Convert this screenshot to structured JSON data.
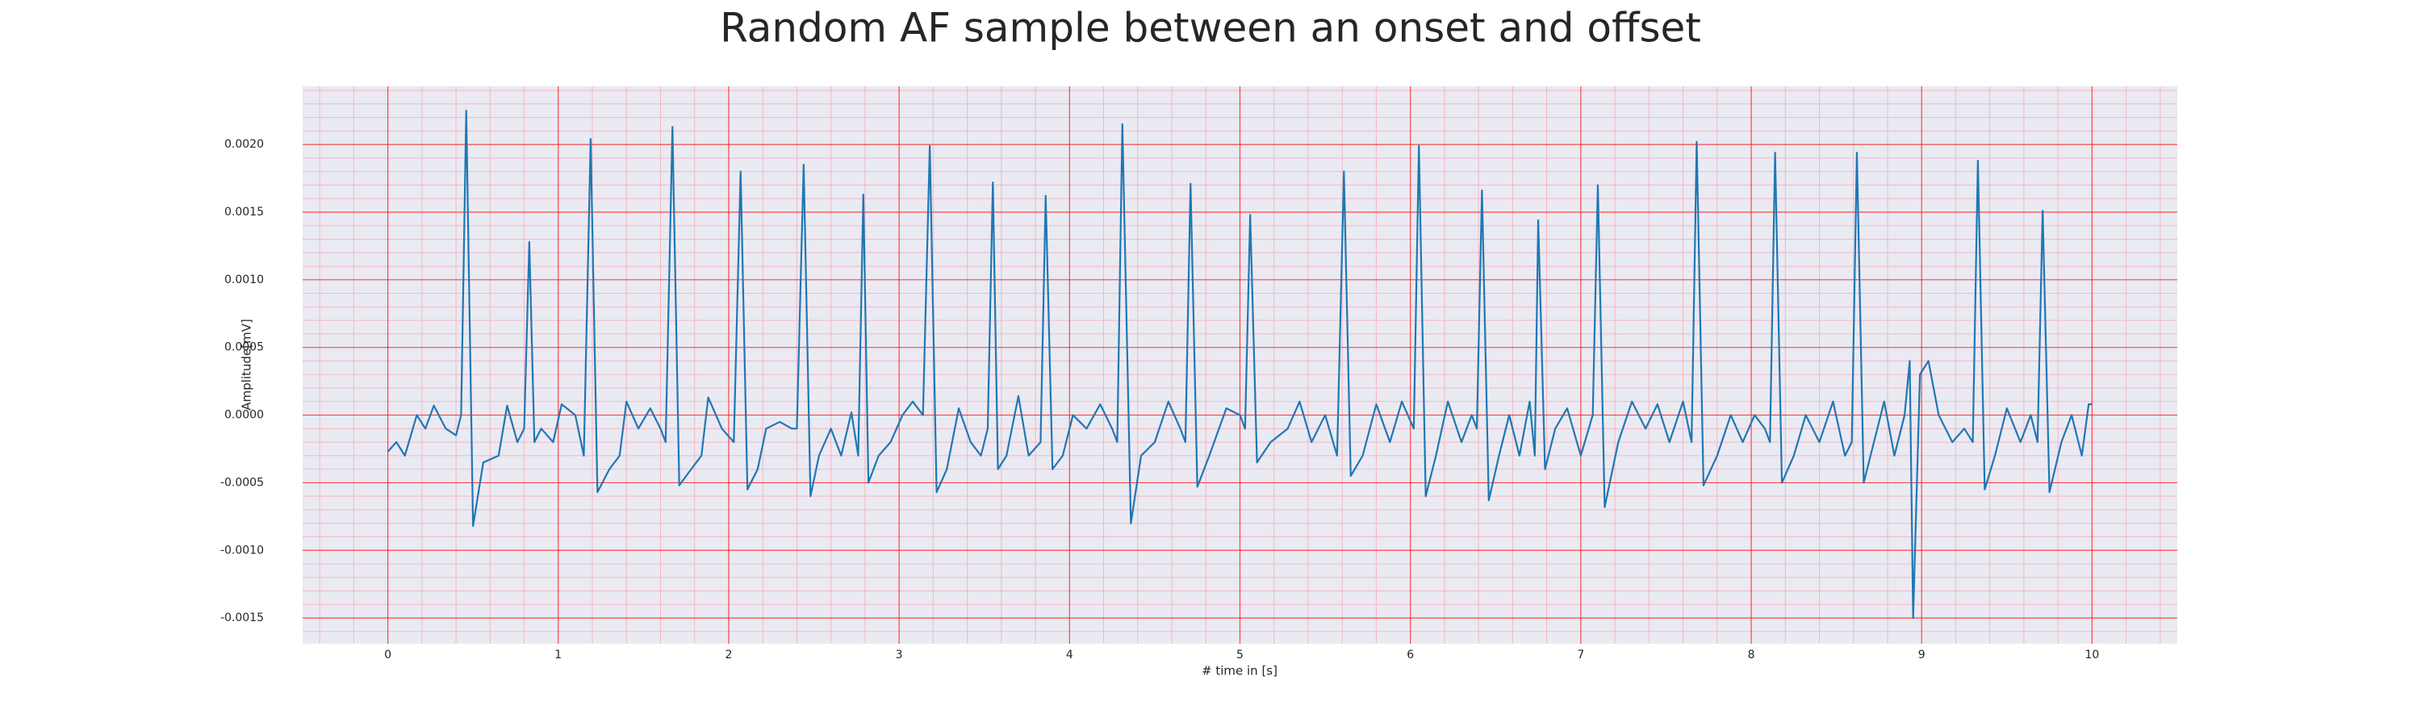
{
  "chart_data": {
    "type": "line",
    "title": "Random AF sample between an onset and offset",
    "xlabel": "# time in [s]",
    "ylabel": "Amplitude[mV]",
    "xlim": [
      -0.5,
      10.5
    ],
    "ylim": [
      -0.00169,
      0.00243
    ],
    "xticks": [
      0,
      1,
      2,
      3,
      4,
      5,
      6,
      7,
      8,
      9,
      10
    ],
    "yticks": [
      {
        "value": -0.0015,
        "label": "-0.0015"
      },
      {
        "value": -0.001,
        "label": "-0.0010"
      },
      {
        "value": -0.0005,
        "label": "-0.0005"
      },
      {
        "value": 0,
        "label": "0.0000"
      },
      {
        "value": 0.0005,
        "label": "0.0005"
      },
      {
        "value": 0.001,
        "label": "0.0010"
      },
      {
        "value": 0.0015,
        "label": "0.0015"
      },
      {
        "value": 0.002,
        "label": "0.0020"
      }
    ],
    "grid": true,
    "minor_grid": true,
    "grid_color": "#ff0000",
    "minor_grid_color": "#f4b6c2",
    "background": "#eaeaf2",
    "x": [
      0.0,
      0.05,
      0.1,
      0.17,
      0.22,
      0.27,
      0.34,
      0.4,
      0.43,
      0.46,
      0.5,
      0.56,
      0.65,
      0.7,
      0.76,
      0.8,
      0.83,
      0.86,
      0.9,
      0.97,
      1.02,
      1.1,
      1.15,
      1.19,
      1.23,
      1.3,
      1.36,
      1.4,
      1.47,
      1.54,
      1.6,
      1.63,
      1.67,
      1.71,
      1.78,
      1.84,
      1.88,
      1.96,
      2.03,
      2.07,
      2.11,
      2.17,
      2.22,
      2.3,
      2.37,
      2.4,
      2.44,
      2.48,
      2.53,
      2.6,
      2.66,
      2.72,
      2.76,
      2.79,
      2.82,
      2.88,
      2.95,
      3.02,
      3.08,
      3.14,
      3.18,
      3.22,
      3.28,
      3.35,
      3.42,
      3.48,
      3.52,
      3.55,
      3.58,
      3.63,
      3.7,
      3.76,
      3.83,
      3.86,
      3.9,
      3.96,
      4.02,
      4.1,
      4.18,
      4.25,
      4.28,
      4.31,
      4.36,
      4.42,
      4.5,
      4.58,
      4.65,
      4.68,
      4.71,
      4.75,
      4.82,
      4.92,
      5.0,
      5.03,
      5.06,
      5.1,
      5.18,
      5.28,
      5.35,
      5.42,
      5.5,
      5.57,
      5.61,
      5.65,
      5.72,
      5.8,
      5.88,
      5.95,
      6.02,
      6.05,
      6.09,
      6.15,
      6.22,
      6.3,
      6.36,
      6.39,
      6.42,
      6.46,
      6.52,
      6.58,
      6.64,
      6.7,
      6.73,
      6.75,
      6.79,
      6.85,
      6.92,
      7.0,
      7.07,
      7.1,
      7.14,
      7.22,
      7.3,
      7.38,
      7.45,
      7.52,
      7.6,
      7.65,
      7.68,
      7.72,
      7.8,
      7.88,
      7.95,
      8.02,
      8.08,
      8.11,
      8.14,
      8.18,
      8.25,
      8.32,
      8.4,
      8.48,
      8.55,
      8.59,
      8.62,
      8.66,
      8.72,
      8.78,
      8.84,
      8.9,
      8.93,
      8.95,
      8.99,
      9.04,
      9.1,
      9.18,
      9.25,
      9.3,
      9.33,
      9.37,
      9.43,
      9.5,
      9.58,
      9.64,
      9.68,
      9.71,
      9.75,
      9.82,
      9.88,
      9.94,
      9.98,
      10.0
    ],
    "series": [
      {
        "color": "#1f77b4",
        "values": [
          -0.00027,
          -0.0002,
          -0.0003,
          0.0,
          -0.0001,
          7e-05,
          -0.0001,
          -0.00015,
          0.0,
          0.00225,
          -0.00082,
          -0.00035,
          -0.0003,
          7e-05,
          -0.0002,
          -0.0001,
          0.00128,
          -0.0002,
          -0.0001,
          -0.0002,
          8e-05,
          0.0,
          -0.0003,
          0.00204,
          -0.00057,
          -0.0004,
          -0.0003,
          0.0001,
          -0.0001,
          5e-05,
          -0.0001,
          -0.0002,
          0.00213,
          -0.00052,
          -0.0004,
          -0.0003,
          0.00013,
          -0.0001,
          -0.0002,
          0.0018,
          -0.00055,
          -0.0004,
          -0.0001,
          -5e-05,
          -0.0001,
          -0.0001,
          0.00185,
          -0.0006,
          -0.0003,
          -0.0001,
          -0.0003,
          2e-05,
          -0.0003,
          0.00163,
          -0.0005,
          -0.0003,
          -0.0002,
          0.0,
          0.0001,
          0.0,
          0.00199,
          -0.00057,
          -0.0004,
          5e-05,
          -0.0002,
          -0.0003,
          -0.0001,
          0.00172,
          -0.0004,
          -0.0003,
          0.00014,
          -0.0003,
          -0.0002,
          0.00162,
          -0.0004,
          -0.0003,
          0.0,
          -0.0001,
          8e-05,
          -0.0001,
          -0.0002,
          0.00215,
          -0.0008,
          -0.0003,
          -0.0002,
          0.0001,
          -0.0001,
          -0.0002,
          0.00171,
          -0.00053,
          -0.0003,
          5e-05,
          0.0,
          -0.0001,
          0.00148,
          -0.00035,
          -0.0002,
          -0.0001,
          0.0001,
          -0.0002,
          0.0,
          -0.0003,
          0.0018,
          -0.00045,
          -0.0003,
          8e-05,
          -0.0002,
          0.0001,
          -0.0001,
          0.00199,
          -0.0006,
          -0.0003,
          0.0001,
          -0.0002,
          0.0,
          -0.0001,
          0.00166,
          -0.00063,
          -0.0003,
          0.0,
          -0.0003,
          0.0001,
          -0.0003,
          0.00144,
          -0.0004,
          -0.0001,
          5e-05,
          -0.0003,
          0.0,
          0.0017,
          -0.00068,
          -0.0002,
          0.0001,
          -0.0001,
          8e-05,
          -0.0002,
          0.0001,
          -0.0002,
          0.00202,
          -0.00052,
          -0.0003,
          0.0,
          -0.0002,
          0.0,
          -0.0001,
          -0.0002,
          0.00194,
          -0.0005,
          -0.0003,
          0.0,
          -0.0002,
          0.0001,
          -0.0003,
          -0.0002,
          0.00194,
          -0.0005,
          -0.0002,
          0.0001,
          -0.0003,
          0.0,
          0.0004,
          -0.0015,
          0.0003,
          0.0004,
          0.0,
          -0.0002,
          -0.0001,
          -0.0002,
          0.00188,
          -0.00055,
          -0.0003,
          5e-05,
          -0.0002,
          0.0,
          -0.0002,
          0.00151,
          -0.00057,
          -0.0002,
          0.0,
          -0.0003,
          8e-05,
          8e-05
        ]
      }
    ]
  }
}
